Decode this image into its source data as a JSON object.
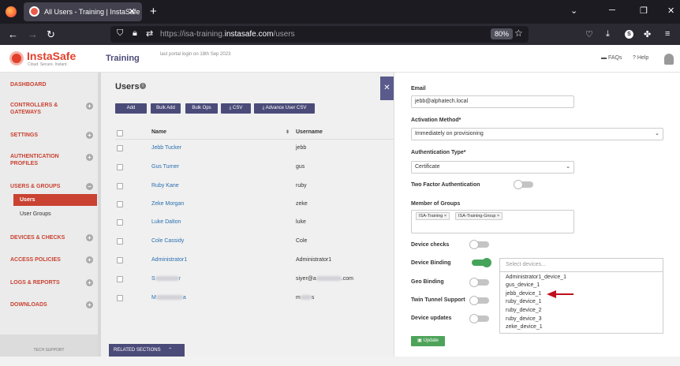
{
  "browser": {
    "tab_title": "All Users - Training | InstaSafe",
    "tab_close": "✕",
    "new_tab": "+",
    "url_host_prefix": "https://isa-training.",
    "url_host_main": "instasafe.com",
    "url_path": "/users",
    "zoom": "80%"
  },
  "header": {
    "logo_text": "InstaSafe",
    "logo_tagline": "Cloud. Secure. Instant.",
    "module": "Training",
    "last_login": "last portal login on 18th Sep 2023",
    "faqs": "FAQs",
    "help": "Help"
  },
  "sidebar": {
    "items": [
      {
        "label": "DASHBOARD"
      },
      {
        "label": "CONTROLLERS & GATEWAYS"
      },
      {
        "label": "SETTINGS"
      },
      {
        "label": "AUTHENTICATION PROFILES"
      },
      {
        "label": "USERS & GROUPS"
      },
      {
        "label": "DEVICES & CHECKS"
      },
      {
        "label": "ACCESS POLICIES"
      },
      {
        "label": "LOGS & REPORTS"
      },
      {
        "label": "DOWNLOADS"
      }
    ],
    "sub_active": "Users",
    "sub_other": "User Groups",
    "tech_support": "TECH SUPPORT"
  },
  "main": {
    "title": "Users",
    "toolbar": [
      "Add",
      "Bulk Add",
      "Bulk Ops",
      "CSV",
      "Advance User CSV"
    ],
    "columns": {
      "name": "Name",
      "username": "Username"
    },
    "rows": [
      {
        "name": "Jebb Tucker",
        "username": "jebb"
      },
      {
        "name": "Gus Turner",
        "username": "gus"
      },
      {
        "name": "Ruby Kane",
        "username": "ruby"
      },
      {
        "name": "Zeke Morgan",
        "username": "zeke"
      },
      {
        "name": "Luke Dalton",
        "username": "luke"
      },
      {
        "name": "Cole Cassidy",
        "username": "Cole"
      },
      {
        "name": "Administrator1",
        "username": "Administrator1"
      },
      {
        "name_start": "S",
        "name_end": "r",
        "username_start": "siyer@a",
        "username_end": ".com"
      },
      {
        "name_start": "M",
        "name_end": "a",
        "username_start": "m",
        "username_end": "s"
      }
    ],
    "related_sections": "RELATED SECTIONS"
  },
  "drawer": {
    "close": "✕",
    "email_label": "Email",
    "email_value": "jebb@alphatech.local",
    "activation_label": "Activation Method*",
    "activation_value": "Immediately on provisioning",
    "auth_type_label": "Authentication Type*",
    "auth_type_value": "Certificate",
    "two_factor_label": "Two Factor Authentication",
    "groups_label": "Member of Groups",
    "groups": [
      "ISA-Training",
      "ISA-Training-Group"
    ],
    "device_checks_label": "Device checks",
    "device_binding_label": "Device Binding",
    "geo_binding_label": "Geo Binding",
    "twin_tunnel_label": "Twin Tunnel Support",
    "device_updates_label": "Device updates",
    "device_search_placeholder": "Select devices...",
    "devices": [
      "Administrator1_device_1",
      "gus_device_1",
      "jebb_device_1",
      "ruby_device_1",
      "ruby_device_2",
      "ruby_device_3",
      "zeke_device_1"
    ],
    "update_button": "Update",
    "toggles": {
      "two_factor": false,
      "device_checks": false,
      "device_binding": true,
      "geo_binding": false,
      "twin_tunnel": false,
      "device_updates": false
    }
  },
  "colors": {
    "brand": "#e2402c",
    "accent": "#4b4b7a",
    "toggle_on": "#46a35a",
    "annotation_arrow": "#c0101c"
  }
}
